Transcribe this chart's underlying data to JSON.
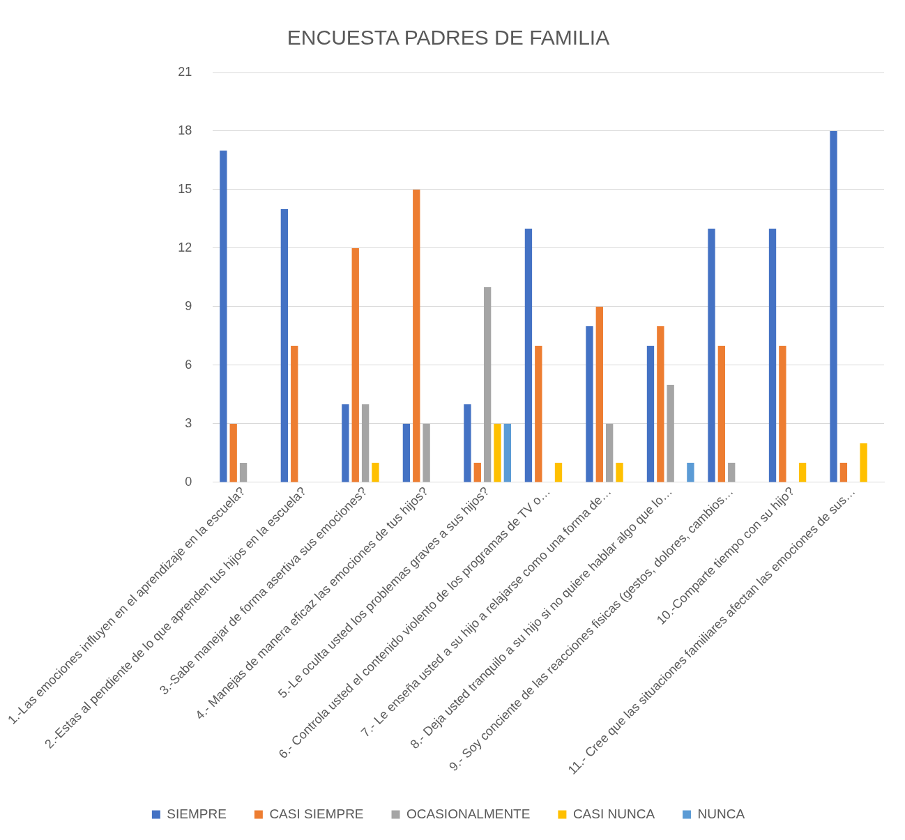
{
  "chart_data": {
    "type": "bar",
    "title": "ENCUESTA PADRES DE FAMILIA",
    "categories": [
      "1.-Las emociones influyen en el aprendizaje en la escuela?",
      "2.-Estas al pendiente de lo que aprenden tus hijos en la escuela?",
      "3.-Sabe manejar de forma asertiva sus emociones?",
      "4.- Manejas de manera eficaz las emociones de tus hijos?",
      "5.-Le oculta usted los problemas graves a sus hijos?",
      "6.- Controla usted el contenido violento de los programas de TV o…",
      "7.- Le enseña usted a su hijo a relajarse como una forma de…",
      "8.- Deja usted tranquilo a su hijo si no quiere hablar algo que lo…",
      "9.- Soy conciente de las reacciones fisicas (gestos, dolores, cambios…",
      "10.-Comparte tiempo con su hijo?",
      "11.- Cree que las situaciones familiares afectan las emociones de sus…"
    ],
    "series": [
      {
        "name": "SIEMPRE",
        "color": "#4472c4",
        "values": [
          17,
          14,
          4,
          3,
          4,
          13,
          8,
          7,
          13,
          13,
          18
        ]
      },
      {
        "name": "CASI SIEMPRE",
        "color": "#ed7d31",
        "values": [
          3,
          7,
          12,
          15,
          1,
          7,
          9,
          8,
          7,
          7,
          1
        ]
      },
      {
        "name": "OCASIONALMENTE",
        "color": "#a5a5a5",
        "values": [
          1,
          0,
          4,
          3,
          10,
          0,
          3,
          5,
          1,
          0,
          0
        ]
      },
      {
        "name": "CASI NUNCA",
        "color": "#ffc000",
        "values": [
          0,
          0,
          1,
          0,
          3,
          1,
          1,
          0,
          0,
          1,
          2
        ]
      },
      {
        "name": "NUNCA",
        "color": "#5b9bd5",
        "values": [
          0,
          0,
          0,
          0,
          3,
          0,
          0,
          1,
          0,
          0,
          0
        ]
      }
    ],
    "ylim": [
      0,
      21
    ],
    "yticks": [
      0,
      3,
      6,
      9,
      12,
      15,
      18,
      21
    ],
    "grid": "y",
    "legend": "bottom"
  }
}
